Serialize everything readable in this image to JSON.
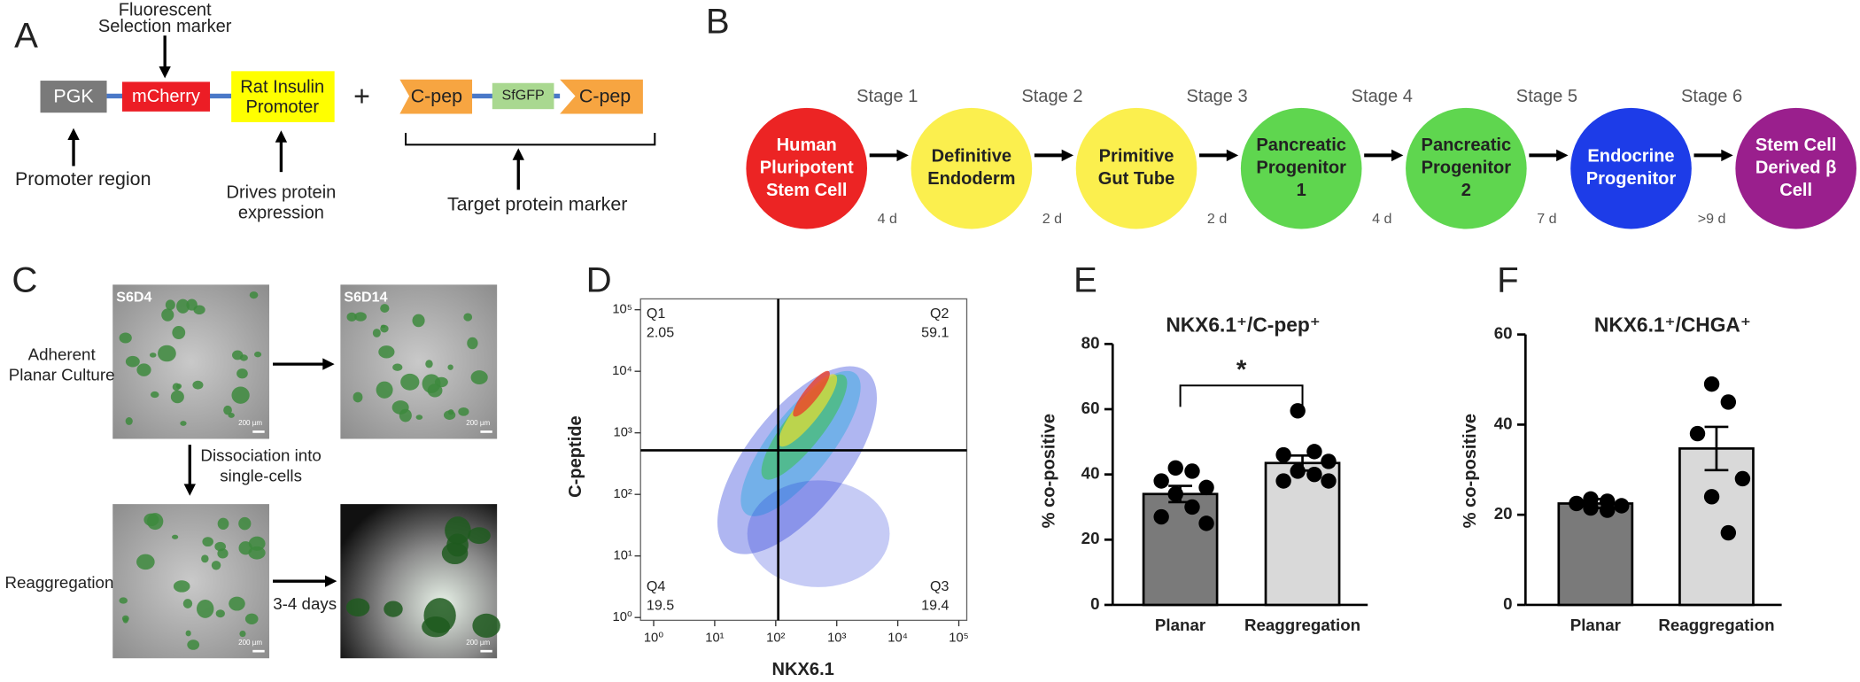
{
  "panel_labels": [
    "A",
    "B",
    "C",
    "D",
    "E",
    "F"
  ],
  "construct": {
    "top_label": [
      "Fluorescent",
      "Selection marker"
    ],
    "pgk": "PGK",
    "mcherry": "mCherry",
    "promoter": [
      "Rat Insulin",
      "Promoter"
    ],
    "plus": "+",
    "cpep_left": "C-pep",
    "sfgfp": "SfGFP",
    "cpep_right": "C-pep",
    "promoter_region": "Promoter region",
    "drives": [
      "Drives protein",
      "expression"
    ],
    "target": "Target protein marker"
  },
  "differentiation": {
    "cells": [
      {
        "label": [
          "Human",
          "Pluripotent",
          "Stem Cell"
        ],
        "color": "#ec2424"
      },
      {
        "label": [
          "Definitive",
          "Endoderm"
        ],
        "color": "#fbef4e"
      },
      {
        "label": [
          "Primitive",
          "Gut Tube"
        ],
        "color": "#fbef4e"
      },
      {
        "label": [
          "Pancreatic",
          "Progenitor",
          "1"
        ],
        "color": "#5fd64f"
      },
      {
        "label": [
          "Pancreatic",
          "Progenitor",
          "2"
        ],
        "color": "#5fd64f"
      },
      {
        "label": [
          "Endocrine",
          "Progenitor"
        ],
        "color": "#1d3ce8"
      },
      {
        "label": [
          "Stem Cell",
          "Derived β",
          "Cell"
        ],
        "color": "#9a1f8d"
      }
    ],
    "transitions": [
      {
        "stage": "Stage 1",
        "duration": "4 d"
      },
      {
        "stage": "Stage 2",
        "duration": "2 d"
      },
      {
        "stage": "Stage 3",
        "duration": "2 d"
      },
      {
        "stage": "Stage 4",
        "duration": "4 d"
      },
      {
        "stage": "Stage 5",
        "duration": "7 d"
      },
      {
        "stage": "Stage 6",
        "duration": ">9 d"
      }
    ]
  },
  "culture": {
    "images": [
      "S6D4",
      "S6D14"
    ],
    "scale_bar": "200 µm",
    "adherent": [
      "Adherent",
      "Planar Culture"
    ],
    "dissociation": [
      "Dissociation into",
      "single-cells"
    ],
    "reaggregation": "Reaggregation",
    "days": "3-4 days"
  },
  "chart_data": [
    {
      "type": "flow",
      "xlabel": "NKX6.1",
      "ylabel": "C-peptide",
      "xscale": "log",
      "yscale": "log",
      "xlim": [
        0.61,
        135000
      ],
      "ylim": [
        0.9,
        150000
      ],
      "xticks": [
        {
          "value": 1,
          "label": "10⁰"
        },
        {
          "value": 10,
          "label": "10¹"
        },
        {
          "value": 100,
          "label": "10²"
        },
        {
          "value": 1000,
          "label": "10³"
        },
        {
          "value": 10000,
          "label": "10⁴"
        },
        {
          "value": 100000,
          "label": "10⁵"
        }
      ],
      "yticks": [
        {
          "value": 1,
          "label": "10⁰"
        },
        {
          "value": 10,
          "label": "10¹"
        },
        {
          "value": 100,
          "label": "10²"
        },
        {
          "value": 1000,
          "label": "10³"
        },
        {
          "value": 10000,
          "label": "10⁴"
        },
        {
          "value": 100000,
          "label": "10⁵"
        }
      ],
      "gates": {
        "x": 110,
        "y": 520
      },
      "quadrants": [
        {
          "name": "Q1",
          "value": 2.05
        },
        {
          "name": "Q2",
          "value": 59.1
        },
        {
          "name": "Q3",
          "value": 19.4
        },
        {
          "name": "Q4",
          "value": 19.5
        }
      ]
    },
    {
      "type": "bar",
      "title": "NKX6.1⁺/C-pep⁺",
      "ylabel": "% co-positive",
      "categories": [
        "Planar",
        "Reaggregation"
      ],
      "values": [
        34,
        43.5
      ],
      "errors": [
        2.5,
        2.3
      ],
      "colors": [
        "#7a7a7a",
        "#d9d9d9"
      ],
      "points": [
        [
          42,
          41,
          38,
          36,
          34,
          30,
          27,
          25
        ],
        [
          59.5,
          47,
          46,
          44,
          41,
          40,
          38,
          38
        ]
      ],
      "ylim": [
        0,
        80
      ],
      "yticks": [
        0,
        20,
        40,
        60,
        80
      ],
      "annotation": "*"
    },
    {
      "type": "bar",
      "title": "NKX6.1⁺/CHGA⁺",
      "ylabel": "% co-positive",
      "categories": [
        "Planar",
        "Reaggregation"
      ],
      "values": [
        22.5,
        34.7
      ],
      "errors": [
        1,
        4.8
      ],
      "colors": [
        "#7a7a7a",
        "#d9d9d9"
      ],
      "points": [
        [
          23.5,
          23,
          22.5,
          22,
          21.5,
          21
        ],
        [
          49,
          45,
          38,
          28,
          24,
          16
        ]
      ],
      "ylim": [
        0,
        60
      ],
      "yticks": [
        0,
        20,
        40,
        60
      ]
    }
  ]
}
